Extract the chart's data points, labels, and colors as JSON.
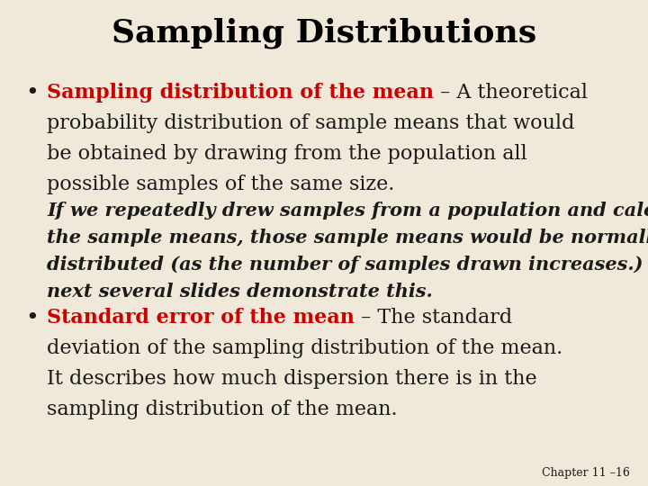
{
  "title": "Sampling Distributions",
  "background_color": "#f0e8d8",
  "title_color": "#000000",
  "red_color": "#cc0000",
  "black_color": "#1a1a1a",
  "footer": "Chapter 11 –16",
  "b1_red": "Sampling distribution of the mean",
  "b1_line1_black": " – A theoretical",
  "b1_line2": "probability distribution of sample means that would",
  "b1_line3": "be obtained by drawing from the population all",
  "b1_line4": "possible samples of the same size.",
  "italic_line1": "If we repeatedly drew samples from a population and calculated",
  "italic_line2": "the sample means, those sample means would be normally",
  "italic_line3": "distributed (as the number of samples drawn increases.) The",
  "italic_line4": "next several slides demonstrate this.",
  "b2_red": "Standard error of the mean",
  "b2_line1_black": " – The standard",
  "b2_line2": "deviation of the sampling distribution of the mean.",
  "b2_line3": "It describes how much dispersion there is in the",
  "b2_line4": "sampling distribution of the mean."
}
